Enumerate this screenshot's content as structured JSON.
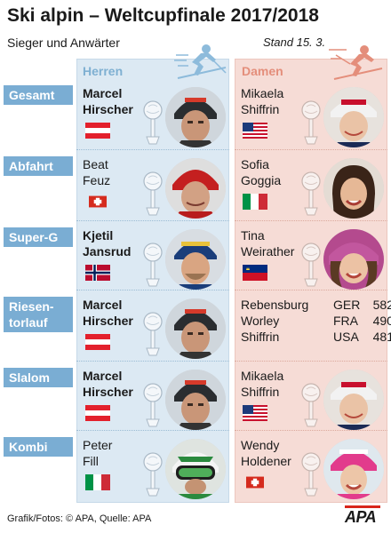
{
  "header": {
    "title": "Ski alpin – Weltcupfinale 2017/2018",
    "subtitle": "Sieger und Anwärter",
    "stand": "Stand 15. 3."
  },
  "columns": {
    "men": "Herren",
    "women": "Damen"
  },
  "rows": [
    {
      "category": "Gesamt",
      "men": {
        "name_line1": "Marcel",
        "name_line2": "Hirscher",
        "flag": "austria-flag"
      },
      "women": {
        "name_line1": "Mikaela",
        "name_line2": "Shiffrin",
        "flag": "usa-flag"
      }
    },
    {
      "category": "Abfahrt",
      "men": {
        "name_line1": "Beat",
        "name_line2": "Feuz",
        "flag": "switzerland-flag"
      },
      "women": {
        "name_line1": "Sofia",
        "name_line2": "Goggia",
        "flag": "italy-flag"
      }
    },
    {
      "category": "Super-G",
      "men": {
        "name_line1": "Kjetil",
        "name_line2": "Jansrud",
        "flag": "norway-flag"
      },
      "women": {
        "name_line1": "Tina",
        "name_line2": "Weirather",
        "flag": "liechtenstein-flag"
      }
    },
    {
      "category_line1": "Riesen-",
      "category_line2": "torlauf",
      "men": {
        "name_line1": "Marcel",
        "name_line2": "Hirscher",
        "flag": "austria-flag"
      },
      "women_results": [
        {
          "name": "Rebensburg",
          "country": "GER",
          "points": "582"
        },
        {
          "name": "Worley",
          "country": "FRA",
          "points": "490"
        },
        {
          "name": "Shiffrin",
          "country": "USA",
          "points": "481"
        }
      ]
    },
    {
      "category": "Slalom",
      "men": {
        "name_line1": "Marcel",
        "name_line2": "Hirscher",
        "flag": "austria-flag"
      },
      "women": {
        "name_line1": "Mikaela",
        "name_line2": "Shiffrin",
        "flag": "usa-flag"
      }
    },
    {
      "category": "Kombi",
      "men": {
        "name_line1": "Peter",
        "name_line2": "Fill",
        "flag": "italy-flag"
      },
      "women": {
        "name_line1": "Wendy",
        "name_line2": "Holdener",
        "flag": "switzerland-flag"
      }
    }
  ],
  "footer": {
    "credit": "Grafik/Fotos: © APA, Quelle: APA",
    "logo": "APA"
  },
  "colors": {
    "category_blue": "#7aadd3",
    "men_bg": "#dce9f3",
    "women_bg": "#f6dcd6",
    "men_accent": "#7fb0d2",
    "women_accent": "#e48e7b",
    "apa_red": "#d8251a"
  }
}
